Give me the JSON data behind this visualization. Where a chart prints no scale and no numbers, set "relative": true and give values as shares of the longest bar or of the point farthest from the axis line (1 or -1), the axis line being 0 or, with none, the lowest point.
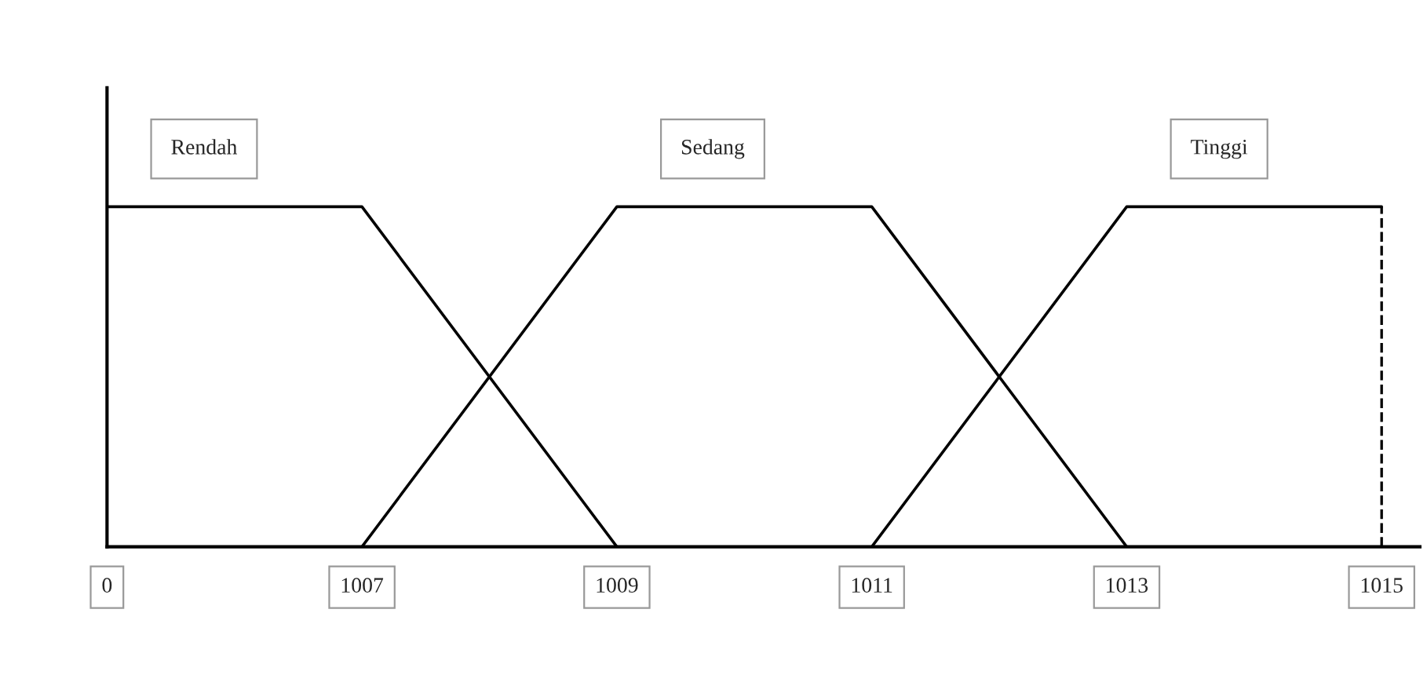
{
  "chart_data": {
    "type": "line",
    "relative": true,
    "categories": [
      "0",
      "1007",
      "1009",
      "1011",
      "1013",
      "1015"
    ],
    "series": [
      {
        "name": "Rendah",
        "color": "#000000",
        "values": [
          1,
          1,
          0,
          null,
          null,
          null
        ]
      },
      {
        "name": "Sedang",
        "color": "#000000",
        "values": [
          null,
          0,
          1,
          1,
          0,
          null
        ]
      },
      {
        "name": "Tinggi",
        "color": "#000000",
        "values": [
          null,
          null,
          null,
          0,
          1,
          1
        ]
      }
    ],
    "ref_lines": [
      {
        "axis": "x",
        "value": "1015",
        "line_style": "dashed",
        "color": "#000000"
      }
    ],
    "legend": false,
    "grid": false,
    "marker": "none",
    "line_style": "solid"
  }
}
